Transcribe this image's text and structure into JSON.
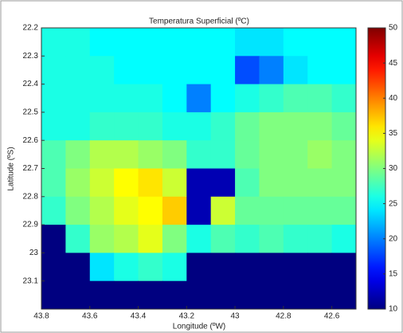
{
  "chart_data": {
    "type": "heatmap",
    "title": "Temperatura Superficial (ºC)",
    "x_label": "Longitude (ºW)",
    "y_label": "Latitude (ºS)",
    "colormap": "jet",
    "x": [
      43.75,
      43.65,
      43.55,
      43.45,
      43.35,
      43.25,
      43.15,
      43.05,
      42.95,
      42.85,
      42.75,
      42.65,
      42.55
    ],
    "y": [
      22.25,
      22.35,
      22.45,
      22.55,
      22.65,
      22.75,
      22.85,
      22.95,
      23.05,
      23.15
    ],
    "values": [
      [
        26,
        26,
        25,
        25,
        25,
        25,
        25,
        25,
        24,
        24,
        25,
        25,
        25
      ],
      [
        26,
        26,
        26,
        25,
        25,
        25,
        25,
        25,
        18,
        20,
        24,
        25,
        25
      ],
      [
        26,
        26,
        26,
        26,
        26,
        25,
        20,
        25,
        26,
        27,
        28,
        28,
        27
      ],
      [
        26,
        26,
        27,
        27,
        27,
        26,
        26,
        27,
        29,
        30,
        30,
        30,
        29
      ],
      [
        28,
        30,
        32,
        32,
        31,
        30,
        27,
        27,
        29,
        30,
        30,
        31,
        30
      ],
      [
        28,
        31,
        33,
        35,
        36,
        33,
        12,
        12,
        28,
        30,
        30,
        30,
        30
      ],
      [
        27,
        30,
        32,
        34,
        35,
        37,
        12,
        33,
        29,
        29,
        29,
        29,
        29
      ],
      [
        10,
        27,
        31,
        32,
        34,
        30,
        26,
        28,
        27,
        28,
        27,
        27,
        26
      ],
      [
        10,
        10,
        24,
        26,
        27,
        26,
        10,
        10,
        10,
        10,
        10,
        10,
        10
      ],
      [
        10,
        10,
        10,
        10,
        10,
        10,
        10,
        10,
        10,
        10,
        10,
        10,
        10
      ]
    ],
    "xlim": [
      43.8,
      42.5
    ],
    "ylim": [
      22.2,
      23.2
    ],
    "xticks": [
      43.8,
      43.6,
      43.4,
      43.2,
      43,
      42.8,
      42.6
    ],
    "yticks": [
      22.2,
      22.3,
      22.4,
      22.5,
      22.6,
      22.7,
      22.8,
      22.9,
      23,
      23.1
    ],
    "clim": [
      10,
      50
    ],
    "cticks": [
      10,
      15,
      20,
      25,
      30,
      35,
      40,
      45,
      50
    ]
  }
}
